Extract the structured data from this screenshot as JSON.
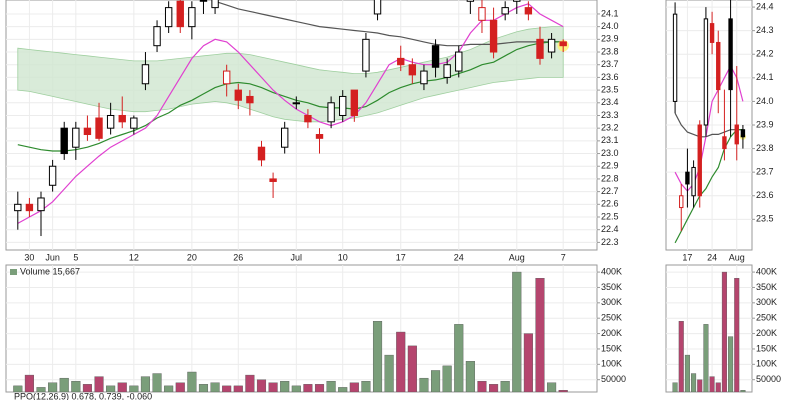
{
  "chart_data": [
    {
      "type": "candlestick",
      "categories": [
        null,
        "30",
        null,
        "Jun",
        null,
        "5",
        null,
        null,
        null,
        null,
        "12",
        null,
        null,
        null,
        null,
        "20",
        null,
        null,
        null,
        "26",
        null,
        null,
        null,
        null,
        "Jul",
        null,
        null,
        null,
        "10",
        null,
        null,
        null,
        null,
        "17",
        null,
        null,
        null,
        null,
        "24",
        null,
        null,
        null,
        null,
        "Aug",
        null,
        null,
        null,
        "7"
      ],
      "open": [
        22.55,
        22.6,
        22.55,
        22.75,
        23.2,
        23.05,
        23.2,
        23.28,
        23.2,
        23.3,
        23.2,
        23.55,
        23.85,
        24.0,
        24.2,
        24.0,
        24.25,
        24.15,
        23.55,
        23.5,
        23.45,
        23.05,
        22.8,
        23.05,
        23.4,
        23.3,
        23.15,
        23.25,
        23.3,
        23.5,
        23.65,
        24.1,
        24.4,
        23.75,
        23.7,
        23.55,
        23.85,
        23.6,
        23.65,
        24.2,
        24.05,
        24.05,
        24.1,
        24.2,
        24.15,
        23.9,
        23.8,
        23.88
      ],
      "high": [
        22.7,
        22.65,
        22.7,
        22.95,
        23.25,
        23.25,
        23.3,
        23.4,
        23.4,
        23.45,
        23.3,
        23.8,
        24.05,
        24.2,
        24.25,
        24.2,
        24.3,
        24.3,
        23.7,
        23.55,
        23.5,
        23.1,
        22.85,
        23.25,
        23.45,
        23.35,
        23.2,
        23.45,
        23.5,
        23.5,
        23.95,
        24.3,
        24.45,
        23.85,
        23.75,
        23.7,
        23.9,
        23.75,
        23.85,
        24.3,
        24.25,
        24.15,
        24.2,
        24.3,
        24.2,
        24.0,
        23.95,
        23.9
      ],
      "low": [
        22.4,
        22.5,
        22.35,
        22.7,
        22.95,
        22.95,
        23.1,
        23.1,
        23.15,
        23.2,
        23.15,
        23.5,
        23.8,
        23.95,
        23.95,
        23.9,
        24.1,
        24.1,
        23.45,
        23.35,
        23.3,
        22.9,
        22.65,
        23.0,
        23.35,
        23.2,
        23.0,
        23.2,
        23.25,
        23.25,
        23.6,
        24.05,
        24.3,
        23.65,
        23.55,
        23.5,
        23.6,
        23.55,
        23.6,
        24.1,
        23.95,
        23.75,
        24.05,
        24.1,
        24.05,
        23.7,
        23.75,
        23.8
      ],
      "close": [
        22.6,
        22.55,
        22.65,
        22.9,
        23.0,
        23.2,
        23.15,
        23.12,
        23.3,
        23.25,
        23.28,
        23.7,
        24.0,
        24.15,
        24.0,
        24.15,
        24.2,
        24.28,
        23.65,
        23.42,
        23.4,
        22.95,
        22.78,
        23.2,
        23.4,
        23.25,
        23.12,
        23.4,
        23.45,
        23.3,
        23.9,
        24.25,
        24.35,
        23.7,
        23.62,
        23.65,
        23.68,
        23.7,
        23.8,
        24.25,
        24.15,
        23.8,
        24.15,
        24.25,
        24.1,
        23.75,
        23.9,
        23.85
      ],
      "band": {
        "color": "#cfe6cf",
        "upper": [
          23.83,
          23.82,
          23.81,
          23.8,
          23.79,
          23.78,
          23.77,
          23.76,
          23.75,
          23.74,
          23.73,
          23.73,
          23.73,
          23.74,
          23.75,
          23.76,
          23.77,
          23.78,
          23.79,
          23.79,
          23.78,
          23.76,
          23.74,
          23.72,
          23.7,
          23.68,
          23.66,
          23.65,
          23.64,
          23.63,
          23.63,
          23.64,
          23.66,
          23.68,
          23.7,
          23.72,
          23.74,
          23.76,
          23.79,
          23.82,
          23.86,
          23.9,
          23.93,
          23.96,
          23.98,
          23.99,
          24.0,
          24.0
        ],
        "lower": [
          23.5,
          23.49,
          23.47,
          23.45,
          23.43,
          23.41,
          23.39,
          23.37,
          23.35,
          23.34,
          23.33,
          23.33,
          23.34,
          23.35,
          23.37,
          23.39,
          23.4,
          23.41,
          23.4,
          23.38,
          23.35,
          23.32,
          23.29,
          23.27,
          23.26,
          23.25,
          23.25,
          23.26,
          23.27,
          23.28,
          23.3,
          23.32,
          23.35,
          23.38,
          23.41,
          23.44,
          23.46,
          23.48,
          23.5,
          23.52,
          23.54,
          23.56,
          23.57,
          23.58,
          23.59,
          23.6,
          23.6,
          23.6
        ]
      },
      "lines": [
        {
          "color": "#555555",
          "values": [
            null,
            null,
            null,
            null,
            null,
            null,
            null,
            null,
            null,
            null,
            null,
            null,
            null,
            null,
            null,
            null,
            null,
            24.2,
            24.17,
            24.14,
            24.12,
            24.1,
            24.08,
            24.06,
            24.04,
            24.02,
            24.0,
            23.99,
            23.98,
            23.97,
            23.96,
            23.95,
            23.93,
            23.92,
            23.9,
            23.88,
            23.86,
            23.85,
            23.85,
            23.86,
            23.86,
            23.86,
            23.87,
            23.88,
            23.88,
            23.88,
            23.88,
            23.88
          ]
        },
        {
          "color": "#2e8b2e",
          "values": [
            23.07,
            23.05,
            23.03,
            23.02,
            23.02,
            23.03,
            23.05,
            23.08,
            23.12,
            23.15,
            23.18,
            23.22,
            23.28,
            23.32,
            23.38,
            23.42,
            23.47,
            23.52,
            23.55,
            23.56,
            23.55,
            23.52,
            23.48,
            23.45,
            23.42,
            23.4,
            23.37,
            23.36,
            23.36,
            23.35,
            23.37,
            23.42,
            23.48,
            23.52,
            23.55,
            23.57,
            23.58,
            23.6,
            23.63,
            23.66,
            23.7,
            23.72,
            23.77,
            23.82,
            23.85,
            23.87,
            23.88,
            23.88
          ]
        },
        {
          "color": "#e040d0",
          "values": [
            22.45,
            22.5,
            22.55,
            22.62,
            22.72,
            22.82,
            22.9,
            22.98,
            23.05,
            23.1,
            23.15,
            23.2,
            23.3,
            23.45,
            23.6,
            23.75,
            23.85,
            23.9,
            23.88,
            23.8,
            23.7,
            23.6,
            23.5,
            23.42,
            23.35,
            23.3,
            23.25,
            23.22,
            23.25,
            23.3,
            23.4,
            23.55,
            23.7,
            23.75,
            23.72,
            23.7,
            23.7,
            23.72,
            23.8,
            23.95,
            24.05,
            24.05,
            24.1,
            24.15,
            24.18,
            24.1,
            24.05,
            24.0
          ]
        }
      ],
      "colors": {
        "up": "#000000",
        "down": "#d42020"
      },
      "ylim": [
        22.24,
        24.21
      ],
      "yticks": [
        22.3,
        22.4,
        22.5,
        22.6,
        22.7,
        22.8,
        22.9,
        {
          "value": 23,
          "label": "23.0"
        },
        23.1,
        23.2,
        23.3,
        23.4,
        23.5,
        23.6,
        23.7,
        23.8,
        23.9,
        {
          "value": 24,
          "label": "24.0"
        },
        24.1
      ],
      "grid": true
    },
    {
      "type": "bar",
      "title": "Volume 15,667",
      "values": [
        30000,
        65000,
        25000,
        40000,
        55000,
        45000,
        35000,
        60000,
        30000,
        40000,
        30000,
        60000,
        70000,
        30000,
        40000,
        75000,
        35000,
        40000,
        30000,
        30000,
        65000,
        50000,
        40000,
        45000,
        30000,
        35000,
        35000,
        45000,
        25000,
        40000,
        45000,
        240000,
        130000,
        205000,
        160000,
        55000,
        80000,
        95000,
        230000,
        110000,
        45000,
        35000,
        45000,
        400000,
        200000,
        380000,
        40000,
        15667
      ],
      "colors": {
        "up": "#7a9e7a",
        "down": "#b5456e"
      },
      "ylim": [
        10000,
        423000
      ],
      "yticks": [
        50000,
        {
          "value": 100000,
          "label": "100K"
        },
        {
          "value": 150000,
          "label": "150K"
        },
        {
          "value": 200000,
          "label": "200K"
        },
        {
          "value": 250000,
          "label": "250K"
        },
        {
          "value": 300000,
          "label": "300K"
        },
        {
          "value": 350000,
          "label": "350K"
        },
        {
          "value": 400000,
          "label": "400K"
        }
      ],
      "grid": true
    },
    {
      "type": "candlestick",
      "categories": [
        null,
        null,
        "17",
        null,
        null,
        null,
        "24",
        null,
        null,
        null,
        "Aug",
        null
      ],
      "open": [
        24.0,
        23.55,
        23.7,
        23.6,
        23.9,
        23.9,
        24.33,
        24.25,
        23.85,
        24.35,
        23.9,
        23.88
      ],
      "high": [
        24.42,
        23.65,
        23.8,
        23.75,
        23.92,
        24.4,
        24.38,
        24.3,
        24.05,
        24.45,
        24.15,
        23.9
      ],
      "low": [
        23.95,
        23.45,
        23.55,
        23.55,
        23.55,
        23.85,
        24.2,
        23.95,
        23.75,
        23.85,
        23.75,
        23.8
      ],
      "close": [
        24.37,
        23.6,
        23.65,
        23.72,
        23.6,
        24.35,
        24.25,
        24.05,
        23.8,
        24.05,
        23.82,
        23.85
      ],
      "lines": [
        {
          "color": "#555555",
          "values": [
            23.95,
            23.9,
            23.87,
            23.86,
            23.85,
            23.85,
            23.86,
            23.86,
            23.87,
            23.88,
            23.88,
            23.88
          ]
        },
        {
          "color": "#2e8b2e",
          "values": [
            23.4,
            23.45,
            23.5,
            23.55,
            23.6,
            23.63,
            23.68,
            23.72,
            23.8,
            23.85,
            23.88,
            23.88
          ]
        },
        {
          "color": "#e040d0",
          "values": [
            23.7,
            23.65,
            23.62,
            23.65,
            23.72,
            23.85,
            24.0,
            24.05,
            24.1,
            24.15,
            24.1,
            24.0
          ]
        }
      ],
      "colors": {
        "up": "#000000",
        "down": "#d42020"
      },
      "ylim": [
        23.37,
        24.43
      ],
      "yticks": [
        23.5,
        23.6,
        23.7,
        23.8,
        23.9,
        {
          "value": 24,
          "label": "24.0"
        },
        24.1,
        24.2,
        24.3,
        24.4
      ],
      "grid": true
    },
    {
      "type": "bar",
      "values": [
        40000,
        240000,
        130000,
        70000,
        50000,
        230000,
        60000,
        40000,
        400000,
        190000,
        380000,
        15667
      ],
      "colors": {
        "up": "#7a9e7a",
        "down": "#b5456e"
      },
      "ylim": [
        10000,
        423000
      ],
      "yticks": [
        50000,
        {
          "value": 100000,
          "label": "100K"
        },
        {
          "value": 150000,
          "label": "150K"
        },
        {
          "value": 200000,
          "label": "200K"
        },
        {
          "value": 250000,
          "label": "250K"
        },
        {
          "value": 300000,
          "label": "300K"
        },
        {
          "value": 350000,
          "label": "350K"
        },
        {
          "value": 400000,
          "label": "400K"
        }
      ],
      "grid": true
    }
  ],
  "ppo_label": "PPO(12,26,9) 0.678, 0.739, -0.060"
}
